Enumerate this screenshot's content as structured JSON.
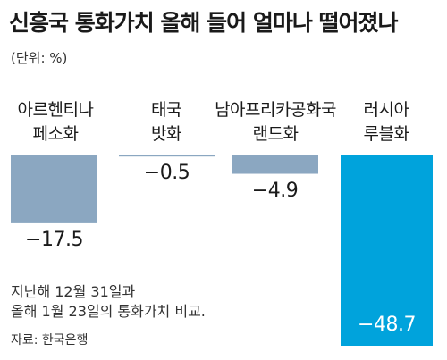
{
  "chart_data": {
    "type": "bar",
    "title": "신흥국 통화가치 올해 들어 얼마나 떨어졌나",
    "unit": "(단위: %)",
    "categories": [
      [
        "아르헨티나",
        "페소화"
      ],
      [
        "태국",
        "밧화"
      ],
      [
        "남아프리카공화국",
        "랜드화"
      ],
      [
        "러시아",
        "루블화"
      ]
    ],
    "values": [
      -17.5,
      -0.5,
      -4.9,
      -48.7
    ],
    "value_labels": [
      "−17.5",
      "−0.5",
      "−4.9",
      "−48.7"
    ],
    "colors": [
      "#8ba7c1",
      "#8ba7c1",
      "#8ba7c1",
      "#00a3dc"
    ],
    "baseline_color": "#8ba7c1",
    "ylim": [
      -48.7,
      0
    ],
    "note": [
      "지난해 12월 31일과",
      "올해 1월 23일의 통화가치 비교."
    ],
    "source": "자료: 한국은행"
  }
}
